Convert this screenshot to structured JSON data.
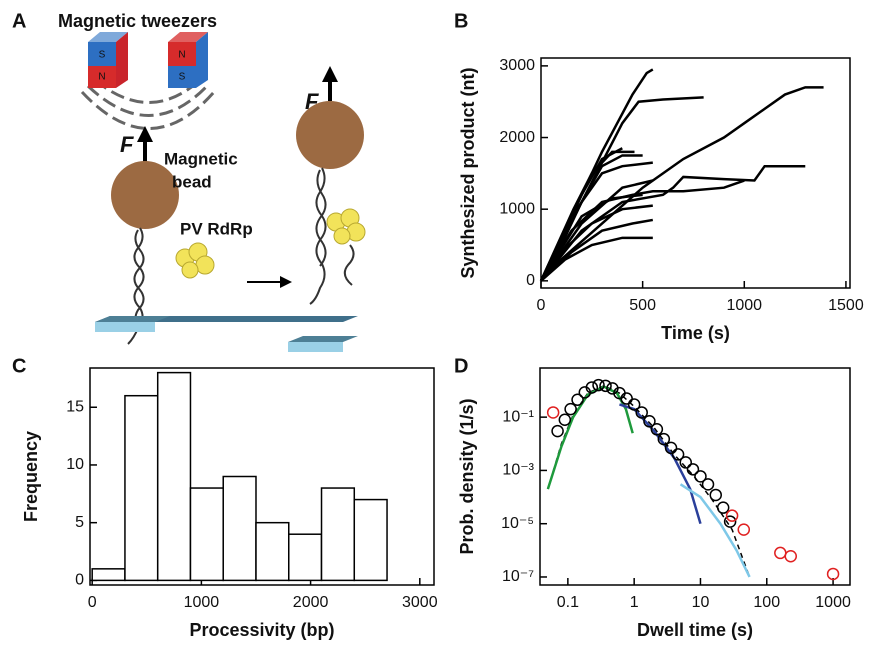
{
  "panels": [
    "A",
    "B",
    "C",
    "D"
  ],
  "diagram": {
    "title": "Magnetic tweezers",
    "force": "F",
    "bead_label": [
      "Magnetic",
      "bead"
    ],
    "enzyme_label": "PV RdRp",
    "magnets": [
      {
        "top": "S",
        "bottom": "N"
      },
      {
        "top": "N",
        "bottom": "S"
      }
    ]
  },
  "chart_data": [
    {
      "type": "line",
      "xlabel": "Time (s)",
      "ylabel": "Synthesized product (nt)",
      "xlim": [
        0,
        1520
      ],
      "ylim": [
        -100,
        3110
      ],
      "xticks": [
        0,
        500,
        1000,
        1500
      ],
      "yticks": [
        0,
        1000,
        2000,
        3000
      ],
      "color": "#000000",
      "series": [
        {
          "x": [
            0,
            150,
            300,
            450,
            520,
            550
          ],
          "values": [
            0,
            900,
            1800,
            2600,
            2900,
            2950
          ]
        },
        {
          "x": [
            0,
            200,
            400,
            480,
            600,
            800
          ],
          "values": [
            0,
            1100,
            2200,
            2500,
            2530,
            2560
          ]
        },
        {
          "x": [
            0,
            100,
            300,
            500,
            700,
            900,
            1000,
            1100,
            1200,
            1300,
            1390
          ],
          "values": [
            0,
            300,
            800,
            1300,
            1700,
            2000,
            2200,
            2400,
            2600,
            2700,
            2700
          ]
        },
        {
          "x": [
            0,
            200,
            400,
            600,
            650,
            700,
            900,
            1050,
            1100,
            1300
          ],
          "values": [
            0,
            700,
            1100,
            1200,
            1300,
            1450,
            1420,
            1400,
            1600,
            1600
          ]
        },
        {
          "x": [
            0,
            100,
            200,
            300,
            400,
            500
          ],
          "values": [
            0,
            500,
            1100,
            1600,
            1750,
            1750
          ]
        },
        {
          "x": [
            0,
            150,
            300,
            400,
            550
          ],
          "values": [
            0,
            900,
            1500,
            1600,
            1650
          ]
        },
        {
          "x": [
            0,
            200,
            400,
            550
          ],
          "values": [
            0,
            800,
            1300,
            1400
          ]
        },
        {
          "x": [
            0,
            100,
            250,
            400,
            550
          ],
          "values": [
            0,
            400,
            800,
            1000,
            1050
          ]
        },
        {
          "x": [
            0,
            150,
            300,
            450,
            550
          ],
          "values": [
            0,
            400,
            700,
            800,
            850
          ]
        },
        {
          "x": [
            0,
            120,
            250,
            400,
            550
          ],
          "values": [
            0,
            300,
            500,
            600,
            600
          ]
        },
        {
          "x": [
            0,
            150,
            300,
            450,
            550,
            700,
            900,
            1000
          ],
          "values": [
            0,
            700,
            1100,
            1200,
            1250,
            1250,
            1300,
            1400
          ]
        },
        {
          "x": [
            0,
            100,
            200,
            300,
            400
          ],
          "values": [
            0,
            600,
            1200,
            1700,
            1850
          ]
        },
        {
          "x": [
            0,
            80,
            160,
            250,
            350,
            460
          ],
          "values": [
            0,
            500,
            1000,
            1500,
            1800,
            1800
          ]
        },
        {
          "x": [
            0,
            200,
            350,
            500
          ],
          "values": [
            0,
            900,
            1150,
            1200
          ]
        }
      ]
    },
    {
      "type": "histogram",
      "xlabel": "Processivity (bp)",
      "ylabel": "Frequency",
      "bins": [
        0,
        300,
        600,
        900,
        1200,
        1500,
        1800,
        2100,
        2400,
        2700
      ],
      "values": [
        1,
        16,
        18,
        8,
        9,
        5,
        4,
        8,
        7
      ],
      "xlim": [
        -20,
        3130
      ],
      "ylim": [
        -0.4,
        18.4
      ],
      "xticks": [
        0,
        1000,
        2000,
        3000
      ],
      "yticks": [
        0,
        5,
        10,
        15
      ],
      "color": "#ffffff"
    },
    {
      "type": "scatter",
      "xlabel": "Dwell time (s)",
      "ylabel": "Prob. density (1/s)",
      "log_x": true,
      "log_y": true,
      "xlim": [
        0.038,
        1800
      ],
      "ylim": [
        5e-08,
        7
      ],
      "xticks": [
        0.1,
        1,
        10,
        100,
        1000
      ],
      "yticks": [
        {
          "value": 1e-07,
          "label": "10⁻⁷"
        },
        {
          "value": 1e-05,
          "label": "10⁻⁵"
        },
        {
          "value": 0.001,
          "label": "10⁻³"
        },
        {
          "value": 0.1,
          "label": "10⁻¹"
        }
      ],
      "series": [
        {
          "kind": "line",
          "dash": true,
          "color": "#000000",
          "x": [
            0.05,
            0.08,
            0.12,
            0.2,
            0.35,
            0.6,
            1,
            2,
            4,
            8,
            15,
            30,
            55
          ],
          "values": [
            0.0002,
            0.01,
            0.12,
            0.8,
            1.5,
            0.8,
            0.25,
            0.04,
            0.004,
            0.0006,
            8e-05,
            6e-06,
            1e-07
          ]
        },
        {
          "kind": "line",
          "color": "#1e9a3c",
          "x": [
            0.05,
            0.08,
            0.12,
            0.2,
            0.35,
            0.55,
            0.75,
            0.95
          ],
          "values": [
            0.0002,
            0.008,
            0.1,
            0.7,
            1.4,
            0.8,
            0.2,
            0.025
          ]
        },
        {
          "kind": "line",
          "color": "#2a3f9a",
          "x": [
            0.6,
            1,
            2,
            4,
            7,
            10
          ],
          "values": [
            0.3,
            0.2,
            0.03,
            0.003,
            0.0002,
            1e-05
          ]
        },
        {
          "kind": "line",
          "color": "#7ec8e8",
          "x": [
            5,
            10,
            20,
            35,
            55
          ],
          "values": [
            0.0003,
            0.0001,
            1e-05,
            1e-06,
            1e-07
          ]
        },
        {
          "kind": "points",
          "color": "#000000",
          "x": [
            0.07,
            0.09,
            0.11,
            0.14,
            0.18,
            0.23,
            0.29,
            0.37,
            0.47,
            0.6,
            0.77,
            1,
            1.3,
            1.7,
            2.2,
            2.8,
            3.6,
            4.6,
            6,
            7.7,
            10,
            13,
            17,
            22,
            28
          ],
          "values": [
            0.03,
            0.08,
            0.2,
            0.45,
            0.85,
            1.3,
            1.6,
            1.5,
            1.2,
            0.8,
            0.5,
            0.3,
            0.15,
            0.07,
            0.035,
            0.015,
            0.007,
            0.004,
            0.002,
            0.0011,
            0.0006,
            0.0003,
            0.00012,
            4e-05,
            1.2e-05
          ]
        },
        {
          "kind": "points",
          "color": "#e02020",
          "x": [
            0.06,
            30,
            45,
            160,
            230,
            1000
          ],
          "values": [
            0.15,
            2e-05,
            6e-06,
            8e-07,
            6e-07,
            1.3e-07
          ]
        }
      ]
    }
  ]
}
